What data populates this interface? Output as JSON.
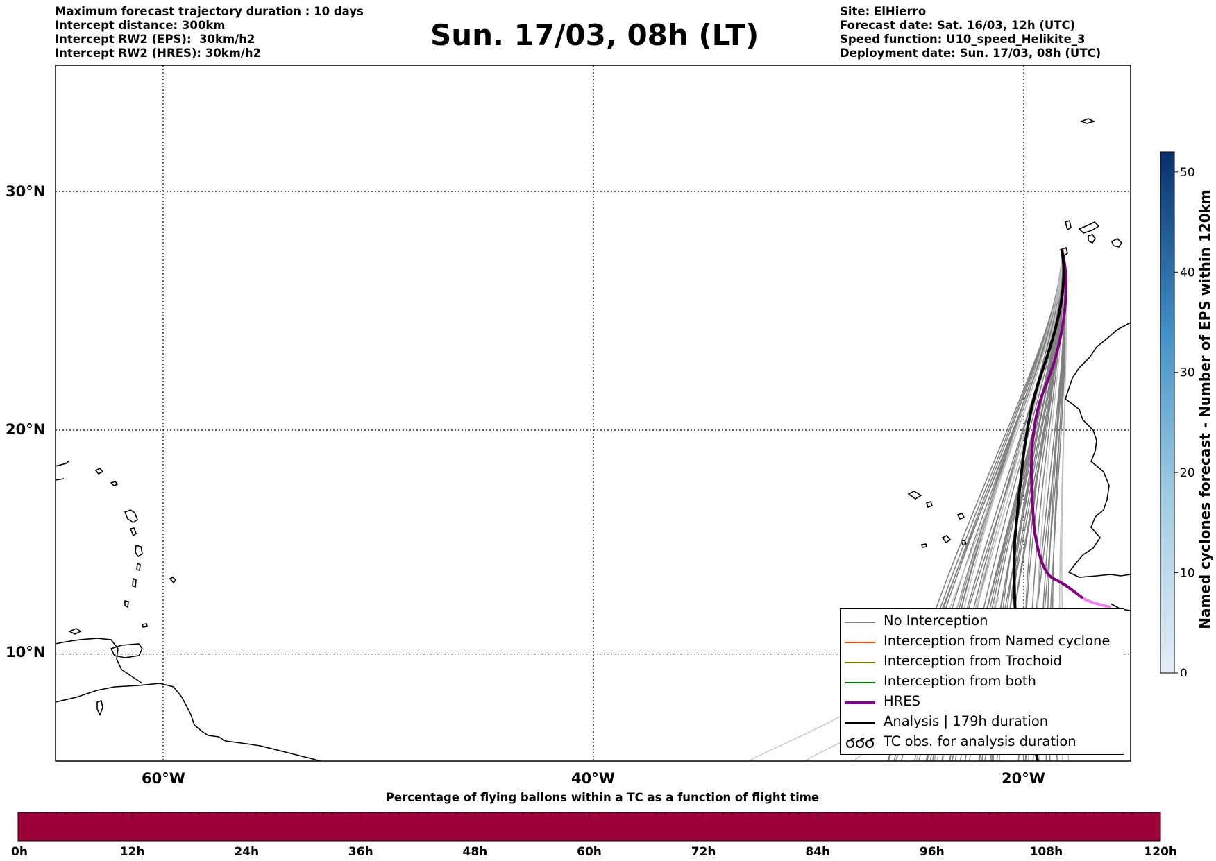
{
  "header": {
    "left": [
      "Maximum forecast trajectory duration : 10 days",
      "Intercept distance: 300km",
      "Intercept RW2 (EPS):  30km/h2",
      "Intercept RW2 (HRES): 30km/h2"
    ],
    "title": "Sun. 17/03, 08h (LT)",
    "right": [
      "Site: ElHierro",
      "Forecast date: Sat. 16/03, 12h (UTC)",
      "Speed function: U10_speed_Helikite_3",
      "Deployment date: Sun. 17/03, 08h (UTC)"
    ]
  },
  "map": {
    "lat_labels": [
      "30°N",
      "20°N",
      "10°N"
    ],
    "lon_labels": [
      "60°W",
      "40°W",
      "20°W"
    ],
    "lon_range": [
      -65,
      15
    ],
    "lat_range": [
      5.5,
      35
    ]
  },
  "legend": {
    "items": [
      {
        "label": "No Interception",
        "color": "#808080",
        "style": "line-thin"
      },
      {
        "label": "Interception from Named cyclone",
        "color": "#ff4500",
        "style": "line-thin"
      },
      {
        "label": "Interception from Trochoid",
        "color": "#808000",
        "style": "line-thin"
      },
      {
        "label": "Interception from both",
        "color": "#008000",
        "style": "line-thin"
      },
      {
        "label": "HRES",
        "color": "#800080",
        "style": "line-thick"
      },
      {
        "label": "Analysis | 179h duration",
        "color": "#000000",
        "style": "line-thick"
      },
      {
        "label": "TC obs. for analysis duration",
        "color": "#000000",
        "style": "symbol"
      }
    ]
  },
  "colorbar": {
    "label": "Named cyclones forecast - Number of EPS within 120km",
    "ticks": [
      "0",
      "10",
      "20",
      "30",
      "40",
      "50"
    ],
    "range": [
      0,
      52
    ],
    "color_low": "#e6eef8",
    "color_high": "#08306b"
  },
  "percentage_bar": {
    "title": "Percentage of flying ballons within a TC as a function of flight time",
    "ticks": [
      "0h",
      "12h",
      "24h",
      "36h",
      "48h",
      "60h",
      "72h",
      "84h",
      "96h",
      "108h",
      "120h"
    ],
    "color": "#9e003a"
  },
  "colors": {
    "no_interception": "#808080",
    "light_trajectory": "#c0c0c0",
    "hres": "#800080",
    "hres_tail": "#ee82ee",
    "analysis": "#000000"
  }
}
